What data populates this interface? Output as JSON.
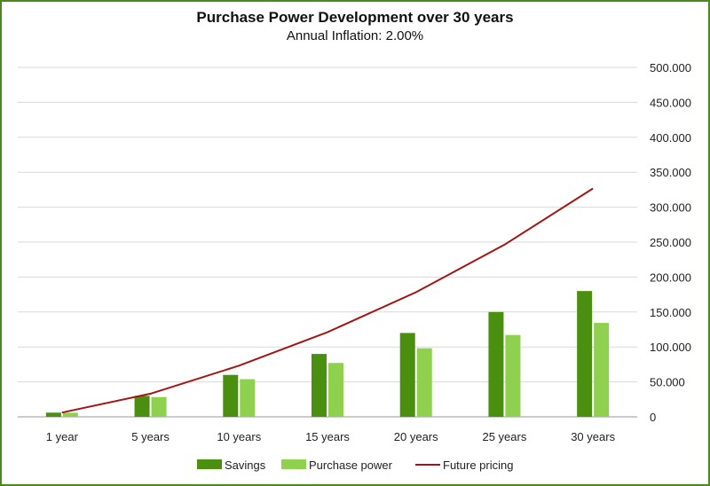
{
  "chart_data": {
    "type": "bar",
    "title": "Purchase Power Development over 30 years",
    "subtitle": "Annual Inflation: 2.00%",
    "categories": [
      "1 year",
      "5 years",
      "10 years",
      "15 years",
      "20 years",
      "25 years",
      "30 years"
    ],
    "series": [
      {
        "name": "Savings",
        "type": "bar",
        "color": "#4a8f10",
        "values": [
          6000,
          30000,
          60000,
          90000,
          120000,
          150000,
          180000
        ]
      },
      {
        "name": "Purchase power",
        "type": "bar",
        "color": "#8fd14f",
        "values": [
          5882,
          28280,
          53895,
          77098,
          98108,
          117134,
          134379
        ]
      },
      {
        "name": "Future pricing",
        "type": "line",
        "color": "#a31515",
        "values": [
          6120,
          33122,
          73140,
          121141,
          178314,
          246305,
          326788
        ]
      }
    ],
    "ylim": [
      0,
      500000
    ],
    "yticks": [
      0,
      50000,
      100000,
      150000,
      200000,
      250000,
      300000,
      350000,
      400000,
      450000,
      500000
    ],
    "ytick_labels": [
      "0",
      "50.000",
      "100.000",
      "150.000",
      "200.000",
      "250.000",
      "300.000",
      "350.000",
      "400.000",
      "450.000",
      "500.000"
    ],
    "y_axis_side": "right",
    "grid": true,
    "legend": "bottom"
  }
}
